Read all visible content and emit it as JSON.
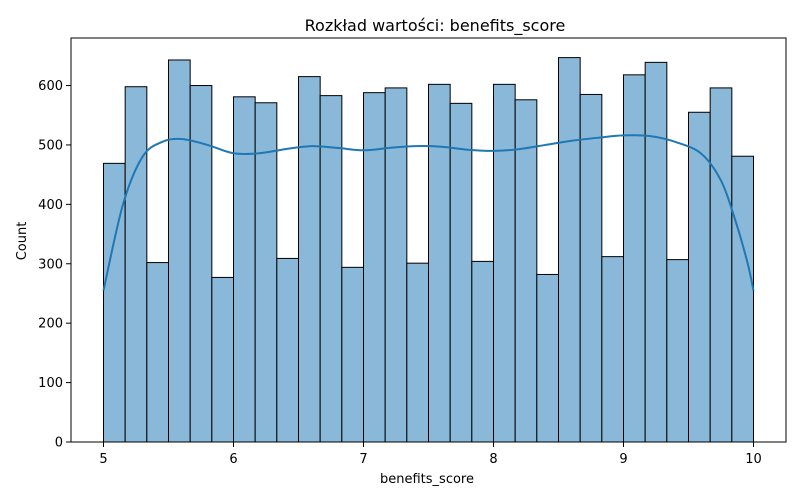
{
  "chart_data": {
    "type": "bar",
    "title": "Rozkład wartości: benefits_score",
    "xlabel": "benefits_score",
    "ylabel": "Count",
    "xlim": [
      4.75,
      10.25
    ],
    "ylim": [
      0,
      680
    ],
    "xticks": [
      5,
      6,
      7,
      8,
      9,
      10
    ],
    "yticks": [
      0,
      100,
      200,
      300,
      400,
      500,
      600
    ],
    "bins": {
      "start": 5,
      "end": 10,
      "count": 30
    },
    "values": [
      469,
      598,
      302,
      643,
      600,
      277,
      581,
      571,
      309,
      615,
      583,
      294,
      588,
      596,
      301,
      602,
      570,
      304,
      602,
      576,
      282,
      647,
      585,
      312,
      618,
      639,
      307,
      555,
      596,
      481
    ],
    "kde": {
      "x": [
        5.0,
        5.15,
        5.3,
        5.45,
        5.6,
        5.8,
        6.0,
        6.2,
        6.4,
        6.6,
        6.8,
        7.0,
        7.2,
        7.4,
        7.6,
        7.8,
        8.0,
        8.2,
        8.4,
        8.6,
        8.8,
        9.0,
        9.2,
        9.4,
        9.6,
        9.75,
        9.85,
        9.95,
        10.0
      ],
      "y": [
        255,
        400,
        480,
        505,
        510,
        500,
        486,
        486,
        493,
        498,
        495,
        491,
        495,
        498,
        497,
        492,
        490,
        493,
        500,
        507,
        512,
        516,
        515,
        505,
        485,
        440,
        380,
        305,
        255
      ]
    },
    "colors": {
      "bar_fill": "#8ab8d9",
      "bar_edge": "#000000",
      "kde": "#1f77b4"
    },
    "grid": false,
    "legend": "none"
  }
}
